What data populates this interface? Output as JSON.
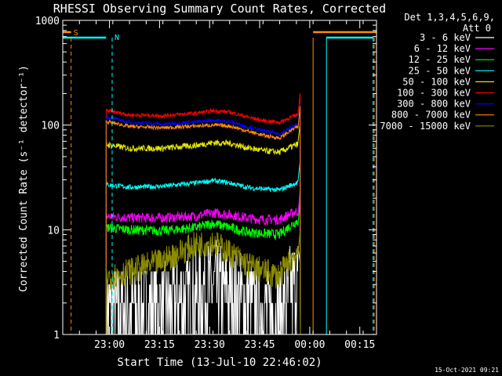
{
  "chart_data": {
    "type": "line",
    "title": "RHESSI Observing Summary Count Rates, Corrected",
    "xlabel": "Start Time (13-Jul-10 22:46:02)",
    "ylabel": "Corrected Count Rate (s⁻¹ detector⁻¹)",
    "y_scale": "log",
    "ylim": [
      1,
      1000
    ],
    "xlim_minutes_from_start": [
      0,
      94
    ],
    "x_ticks": [
      {
        "label": "23:00",
        "minutes": 14
      },
      {
        "label": "23:15",
        "minutes": 29
      },
      {
        "label": "23:30",
        "minutes": 44
      },
      {
        "label": "23:45",
        "minutes": 59
      },
      {
        "label": "00:00",
        "minutes": 74
      },
      {
        "label": "00:15",
        "minutes": 89
      }
    ],
    "y_ticks": [
      {
        "label": "1",
        "value": 1
      },
      {
        "label": "10",
        "value": 10
      },
      {
        "label": "100",
        "value": 100
      },
      {
        "label": "1000",
        "value": 1000
      }
    ],
    "legend": {
      "position": "right",
      "header": [
        "Det 1,3,4,5,6,9,",
        "Att 0"
      ]
    },
    "data_window_minutes": [
      13,
      70.5
    ],
    "series": [
      {
        "name": "3 - 6 keV",
        "color": "#ffffff",
        "noise": 0.45,
        "minutes": [
          13,
          20,
          30,
          40,
          45,
          50,
          55,
          60,
          65,
          70
        ],
        "values": [
          1.6,
          1.6,
          1.7,
          2.2,
          2.6,
          2.3,
          1.8,
          1.6,
          1.5,
          3.0
        ]
      },
      {
        "name": "6 - 12 keV",
        "color": "#ff00ff",
        "noise": 0.08,
        "minutes": [
          13,
          20,
          30,
          40,
          45,
          50,
          55,
          60,
          65,
          70
        ],
        "values": [
          13.5,
          13,
          13,
          13.5,
          14.5,
          14,
          13,
          12.5,
          12.5,
          15
        ]
      },
      {
        "name": "12 - 25 keV",
        "color": "#00ff00",
        "noise": 0.08,
        "minutes": [
          13,
          20,
          30,
          40,
          45,
          50,
          55,
          60,
          65,
          70
        ],
        "values": [
          10.5,
          10,
          9.8,
          10.5,
          11.5,
          10.5,
          9.5,
          9.2,
          9.0,
          12
        ]
      },
      {
        "name": "25 - 50 keV",
        "color": "#00ffff",
        "noise": 0.04,
        "minutes": [
          13,
          20,
          30,
          40,
          45,
          50,
          55,
          60,
          65,
          70
        ],
        "values": [
          27,
          25.5,
          26,
          28,
          29.5,
          28,
          25.5,
          24.5,
          24,
          28
        ]
      },
      {
        "name": "50 - 100 keV",
        "color": "#e6e600",
        "noise": 0.05,
        "minutes": [
          13,
          20,
          30,
          40,
          45,
          50,
          55,
          60,
          65,
          70
        ],
        "values": [
          65,
          60,
          60,
          64,
          68,
          67,
          61,
          57,
          55,
          65
        ]
      },
      {
        "name": "100 - 300 keV",
        "color": "#ff0000",
        "noise": 0.03,
        "minutes": [
          13,
          20,
          30,
          40,
          45,
          50,
          55,
          60,
          65,
          70
        ],
        "values": [
          138,
          125,
          123,
          130,
          137,
          133,
          120,
          110,
          106,
          125
        ]
      },
      {
        "name": "300 - 800 keV",
        "color": "#0000ff",
        "noise": 0.03,
        "minutes": [
          13,
          20,
          30,
          40,
          45,
          50,
          55,
          60,
          65,
          70
        ],
        "values": [
          120,
          106,
          102,
          107,
          111,
          108,
          97,
          88,
          82,
          100
        ]
      },
      {
        "name": "800 - 7000 keV",
        "color": "#ff8c00",
        "noise": 0.03,
        "minutes": [
          13,
          20,
          30,
          40,
          45,
          50,
          55,
          60,
          65,
          70
        ],
        "values": [
          108,
          97,
          94,
          98,
          100,
          98,
          88,
          80,
          75,
          95
        ]
      },
      {
        "name": "7000 - 15000 keV",
        "color": "#8b8b00",
        "noise": 0.22,
        "minutes": [
          13,
          20,
          30,
          40,
          45,
          50,
          55,
          60,
          65,
          70
        ],
        "values": [
          3.5,
          4.0,
          5.0,
          7.2,
          7.6,
          6.0,
          4.7,
          4.0,
          3.6,
          6.0
        ]
      }
    ],
    "flags": [
      {
        "label": "S",
        "color": "#ff8c00"
      },
      {
        "label": "N",
        "color": "#00ffff"
      }
    ],
    "timestamp": "15-Oct-2021 09:21"
  }
}
